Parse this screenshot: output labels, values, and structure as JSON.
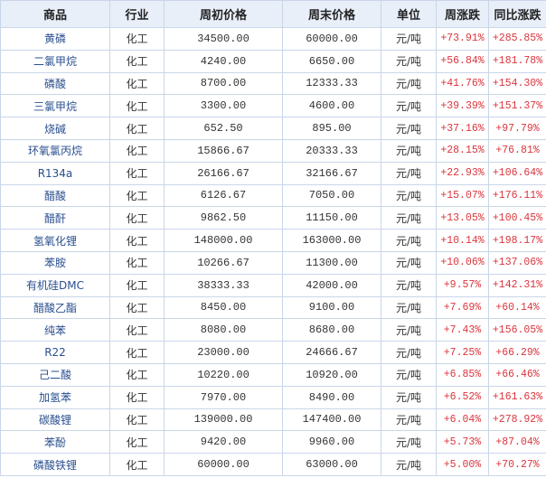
{
  "headers": [
    "商品",
    "行业",
    "周初价格",
    "周末价格",
    "单位",
    "周涨跌",
    "同比涨跌"
  ],
  "colors": {
    "header_bg": "#e8eff9",
    "name": "#2a4f8f",
    "pct": "#d9363e",
    "border": "#c9d6e8"
  },
  "rows": [
    {
      "name": "黄磷",
      "industry": "化工",
      "start": "34500.00",
      "end": "60000.00",
      "unit": "元/吨",
      "week": "+73.91%",
      "yoy": "+285.85%"
    },
    {
      "name": "二氯甲烷",
      "industry": "化工",
      "start": "4240.00",
      "end": "6650.00",
      "unit": "元/吨",
      "week": "+56.84%",
      "yoy": "+181.78%"
    },
    {
      "name": "磷酸",
      "industry": "化工",
      "start": "8700.00",
      "end": "12333.33",
      "unit": "元/吨",
      "week": "+41.76%",
      "yoy": "+154.30%"
    },
    {
      "name": "三氯甲烷",
      "industry": "化工",
      "start": "3300.00",
      "end": "4600.00",
      "unit": "元/吨",
      "week": "+39.39%",
      "yoy": "+151.37%"
    },
    {
      "name": "烧碱",
      "industry": "化工",
      "start": "652.50",
      "end": "895.00",
      "unit": "元/吨",
      "week": "+37.16%",
      "yoy": "+97.79%"
    },
    {
      "name": "环氧氯丙烷",
      "industry": "化工",
      "start": "15866.67",
      "end": "20333.33",
      "unit": "元/吨",
      "week": "+28.15%",
      "yoy": "+76.81%"
    },
    {
      "name": "R134a",
      "industry": "化工",
      "start": "26166.67",
      "end": "32166.67",
      "unit": "元/吨",
      "week": "+22.93%",
      "yoy": "+106.64%"
    },
    {
      "name": "醋酸",
      "industry": "化工",
      "start": "6126.67",
      "end": "7050.00",
      "unit": "元/吨",
      "week": "+15.07%",
      "yoy": "+176.11%"
    },
    {
      "name": "醋酐",
      "industry": "化工",
      "start": "9862.50",
      "end": "11150.00",
      "unit": "元/吨",
      "week": "+13.05%",
      "yoy": "+100.45%"
    },
    {
      "name": "氢氧化锂",
      "industry": "化工",
      "start": "148000.00",
      "end": "163000.00",
      "unit": "元/吨",
      "week": "+10.14%",
      "yoy": "+198.17%"
    },
    {
      "name": "苯胺",
      "industry": "化工",
      "start": "10266.67",
      "end": "11300.00",
      "unit": "元/吨",
      "week": "+10.06%",
      "yoy": "+137.06%"
    },
    {
      "name": "有机硅DMC",
      "industry": "化工",
      "start": "38333.33",
      "end": "42000.00",
      "unit": "元/吨",
      "week": "+9.57%",
      "yoy": "+142.31%"
    },
    {
      "name": "醋酸乙酯",
      "industry": "化工",
      "start": "8450.00",
      "end": "9100.00",
      "unit": "元/吨",
      "week": "+7.69%",
      "yoy": "+60.14%"
    },
    {
      "name": "纯苯",
      "industry": "化工",
      "start": "8080.00",
      "end": "8680.00",
      "unit": "元/吨",
      "week": "+7.43%",
      "yoy": "+156.05%"
    },
    {
      "name": "R22",
      "industry": "化工",
      "start": "23000.00",
      "end": "24666.67",
      "unit": "元/吨",
      "week": "+7.25%",
      "yoy": "+66.29%"
    },
    {
      "name": "己二酸",
      "industry": "化工",
      "start": "10220.00",
      "end": "10920.00",
      "unit": "元/吨",
      "week": "+6.85%",
      "yoy": "+66.46%"
    },
    {
      "name": "加氢苯",
      "industry": "化工",
      "start": "7970.00",
      "end": "8490.00",
      "unit": "元/吨",
      "week": "+6.52%",
      "yoy": "+161.63%"
    },
    {
      "name": "碳酸锂",
      "industry": "化工",
      "start": "139000.00",
      "end": "147400.00",
      "unit": "元/吨",
      "week": "+6.04%",
      "yoy": "+278.92%"
    },
    {
      "name": "苯酚",
      "industry": "化工",
      "start": "9420.00",
      "end": "9960.00",
      "unit": "元/吨",
      "week": "+5.73%",
      "yoy": "+87.04%"
    },
    {
      "name": "磷酸铁锂",
      "industry": "化工",
      "start": "60000.00",
      "end": "63000.00",
      "unit": "元/吨",
      "week": "+5.00%",
      "yoy": "+70.27%"
    }
  ]
}
